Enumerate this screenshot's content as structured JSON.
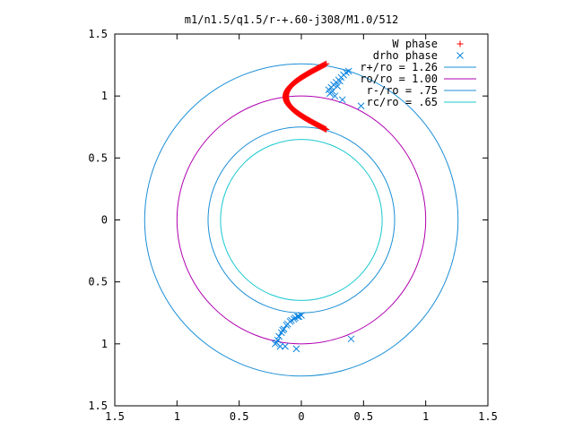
{
  "chart_data": {
    "type": "scatter",
    "title": "m1/n1.5/q1.5/r-+.60-j308/M1.0/512",
    "xlim": [
      -1.5,
      1.5
    ],
    "ylim": [
      -1.5,
      1.5
    ],
    "x_ticks": [
      "1.5",
      "1",
      "0.5",
      "0",
      "0.5",
      "1",
      "1.5"
    ],
    "y_ticks": [
      "1.5",
      "1",
      "0.5",
      "0",
      "0.5",
      "1",
      "1.5"
    ],
    "grid": false,
    "legend_position": "top-right",
    "series": [
      {
        "name": "W phase",
        "kind": "points",
        "marker": "plus",
        "color": "#ff0000",
        "arc": {
          "r_from": 1.26,
          "r_to": 0.75,
          "theta_from": 80,
          "theta_to": 100,
          "theta_to_end": 80,
          "count": 140
        }
      },
      {
        "name": "drho phase",
        "kind": "points",
        "marker": "cross",
        "color": "#0a83e0",
        "points": [
          [
            0.22,
            1.05
          ],
          [
            0.24,
            1.07
          ],
          [
            0.26,
            1.09
          ],
          [
            0.28,
            1.11
          ],
          [
            0.3,
            1.13
          ],
          [
            0.32,
            1.15
          ],
          [
            0.34,
            1.17
          ],
          [
            0.36,
            1.19
          ],
          [
            0.38,
            1.2
          ],
          [
            0.23,
            1.02
          ],
          [
            0.27,
            1.0
          ],
          [
            0.33,
            0.97
          ],
          [
            0.48,
            0.92
          ],
          [
            0.25,
            1.04
          ],
          [
            0.29,
            1.08
          ],
          [
            0.31,
            1.12
          ],
          [
            0.0,
            -0.77
          ],
          [
            -0.03,
            -0.78
          ],
          [
            -0.06,
            -0.8
          ],
          [
            -0.09,
            -0.82
          ],
          [
            -0.12,
            -0.85
          ],
          [
            -0.14,
            -0.88
          ],
          [
            -0.16,
            -0.91
          ],
          [
            -0.18,
            -0.94
          ],
          [
            -0.19,
            -0.97
          ],
          [
            -0.2,
            -0.99
          ],
          [
            -0.21,
            -1.0
          ],
          [
            -0.17,
            -1.02
          ],
          [
            -0.13,
            -1.02
          ],
          [
            -0.04,
            -1.04
          ],
          [
            0.4,
            -0.96
          ],
          [
            -0.02,
            -0.78
          ],
          [
            -0.05,
            -0.79
          ],
          [
            -0.08,
            -0.81
          ],
          [
            -0.11,
            -0.84
          ],
          [
            -0.15,
            -0.89
          ]
        ]
      },
      {
        "name": "r+/ro = 1.26",
        "kind": "circle",
        "radius": 1.26,
        "color": "#1c8fd6"
      },
      {
        "name": "ro/ro = 1.00",
        "kind": "circle",
        "radius": 1.0,
        "color": "#b000b0"
      },
      {
        "name": "r-/ro = .75",
        "kind": "circle",
        "radius": 0.75,
        "color": "#1c8fd6"
      },
      {
        "name": "rc/ro = .65",
        "kind": "circle",
        "radius": 0.65,
        "color": "#18c8d0"
      }
    ]
  }
}
